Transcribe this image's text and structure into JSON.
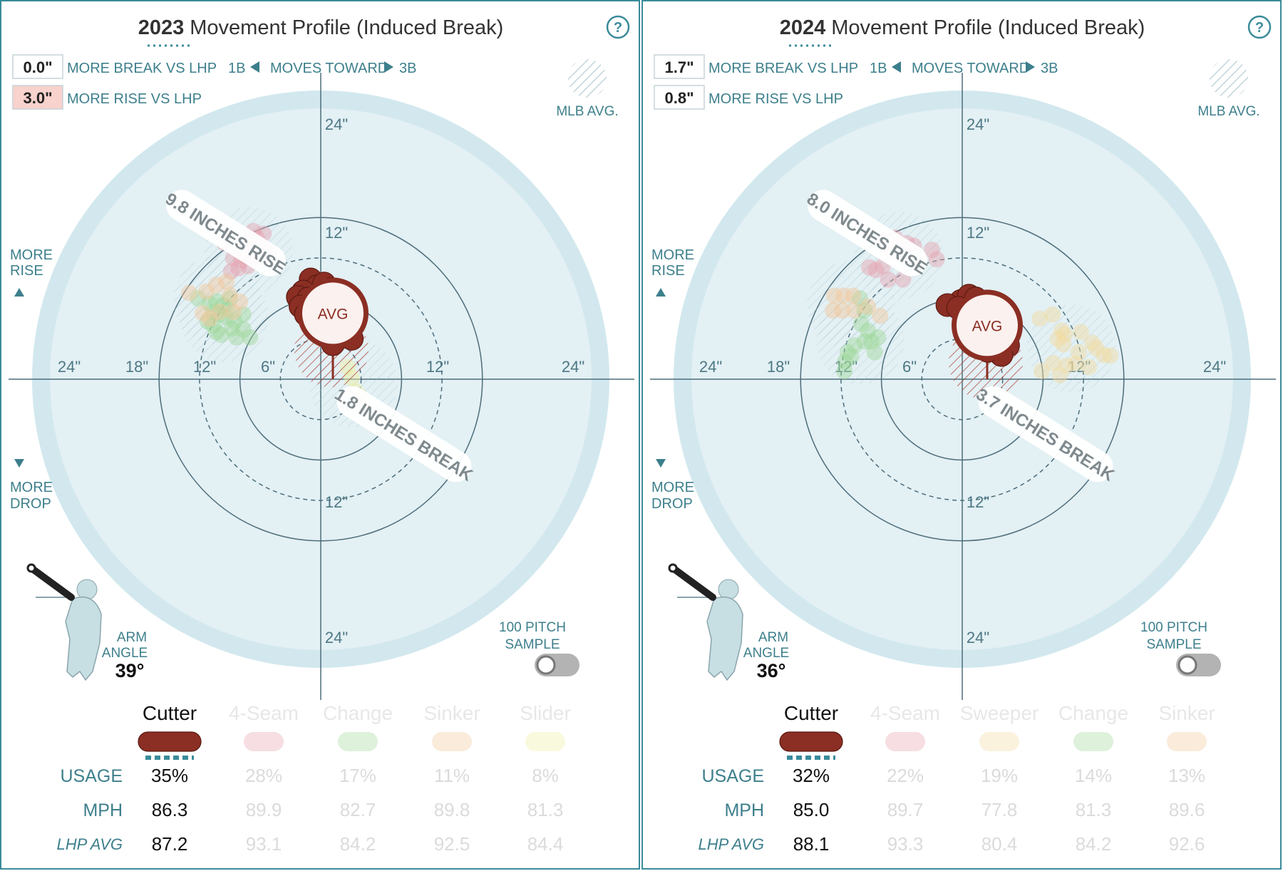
{
  "colors": {
    "accent": "#3a8b9a",
    "cutter": "#8b2e23",
    "fourseam": "#e7a3b0",
    "change": "#9fd89a",
    "sinker": "#f3c89a",
    "sweeper": "#f3dca0",
    "slider": "#eeeea0",
    "field_outer": "#d2e8ee",
    "field_inner": "#e3f0f4",
    "lhp_rise_box": "#f8d2cc",
    "text_teal": "#3d7f8c"
  },
  "ui": {
    "help_icon": "?",
    "mlb_avg": "MLB AVG.",
    "more_break_label": "MORE BREAK VS LHP",
    "more_rise_label": "MORE RISE VS LHP",
    "moves_1b": "1B",
    "moves_toward": "MOVES TOWARD",
    "moves_3b": "3B",
    "more_rise": [
      "MORE",
      "RISE"
    ],
    "more_drop": [
      "MORE",
      "DROP"
    ],
    "arm_angle_label": [
      "ARM",
      "ANGLE"
    ],
    "sample_label": [
      "100 PITCH",
      "SAMPLE"
    ],
    "avg_label": "AVG",
    "row_usage": "USAGE",
    "row_mph": "MPH",
    "row_lhp": "LHP AVG",
    "ring_labels": {
      "left_24": "24\"",
      "left_18": "18\"",
      "left_12": "12\"",
      "left_6": "6\"",
      "right_12": "12\"",
      "right_24": "24\"",
      "top_24": "24\"",
      "top_12": "12\"",
      "bottom_12": "12\"",
      "bottom_24": "24\""
    }
  },
  "chart_data": [
    {
      "type": "scatter",
      "title_year": "2023",
      "title_rest": "Movement Profile (Induced Break)",
      "more_break_vs_lhp": "0.0\"",
      "more_rise_vs_lhp": "3.0\"",
      "rise_banner": "9.8 INCHES RISE",
      "break_banner": "1.8 INCHES BREAK",
      "arm_angle": "39°",
      "selected_pitch": "Cutter",
      "pitches": [
        {
          "name": "Cutter",
          "usage": "35%",
          "mph": "86.3",
          "lhp_avg": "87.2",
          "color": "#8b2e23",
          "active": true
        },
        {
          "name": "4-Seam",
          "usage": "28%",
          "mph": "89.9",
          "lhp_avg": "93.1",
          "color": "#e7a3b0",
          "active": false
        },
        {
          "name": "Change",
          "usage": "17%",
          "mph": "82.7",
          "lhp_avg": "84.2",
          "color": "#9fd89a",
          "active": false
        },
        {
          "name": "Sinker",
          "usage": "11%",
          "mph": "89.8",
          "lhp_avg": "92.5",
          "color": "#f3c89a",
          "active": false
        },
        {
          "name": "Slider",
          "usage": "8%",
          "mph": "81.3",
          "lhp_avg": "84.4",
          "color": "#eeeea0",
          "active": false
        }
      ],
      "avg_point": {
        "x": 1.8,
        "y": 9.8
      },
      "series": [
        {
          "name": "Cutter",
          "points": [
            [
              -1.5,
              14.8
            ],
            [
              -0.5,
              13.8
            ],
            [
              0.5,
              14.2
            ],
            [
              1.5,
              13.4
            ],
            [
              -2.6,
              13.0
            ],
            [
              -3.4,
              12.2
            ],
            [
              -1.8,
              12.0
            ],
            [
              -0.2,
              12.4
            ],
            [
              1.2,
              12.6
            ],
            [
              -3.0,
              10.8
            ],
            [
              -2.2,
              9.6
            ],
            [
              -0.6,
              10.6
            ],
            [
              2.8,
              10.8
            ],
            [
              4.6,
              10.0
            ],
            [
              5.0,
              9.0
            ],
            [
              4.0,
              8.4
            ],
            [
              -1.2,
              8.0
            ],
            [
              0.4,
              8.8
            ],
            [
              2.8,
              7.6
            ],
            [
              3.8,
              6.8
            ],
            [
              4.6,
              6.0
            ],
            [
              1.8,
              5.2
            ]
          ]
        },
        {
          "name": "4-Seam",
          "points": [
            [
              -11.0,
              21.2
            ],
            [
              -10.0,
              22.0
            ],
            [
              -9.5,
              21.0
            ],
            [
              -8.5,
              21.6
            ],
            [
              -11.5,
              20.0
            ],
            [
              -9.8,
              19.5
            ],
            [
              -8.8,
              19.8
            ],
            [
              -7.8,
              18.8
            ],
            [
              -14.3,
              20.2
            ],
            [
              -11.0,
              18.2
            ],
            [
              -9.8,
              18.0
            ],
            [
              -8.6,
              17.6
            ],
            [
              -13.0,
              18.0
            ],
            [
              -11.8,
              17.6
            ],
            [
              -10.8,
              16.8
            ],
            [
              -12.2,
              16.5
            ],
            [
              -13.3,
              16.0
            ]
          ]
        },
        {
          "name": "Change",
          "points": [
            [
              -18.2,
              12.0
            ],
            [
              -16.5,
              11.2
            ],
            [
              -15.5,
              11.6
            ],
            [
              -14.5,
              11.0
            ],
            [
              -13.5,
              12.0
            ],
            [
              -16.0,
              10.0
            ],
            [
              -15.0,
              9.6
            ],
            [
              -14.0,
              9.2
            ],
            [
              -12.8,
              8.6
            ],
            [
              -16.8,
              8.6
            ],
            [
              -16.0,
              8.0
            ],
            [
              -15.5,
              7.0
            ],
            [
              -14.8,
              6.6
            ],
            [
              -13.2,
              7.5
            ],
            [
              -11.5,
              7.4
            ],
            [
              -12.5,
              6.2
            ],
            [
              -10.5,
              6.2
            ],
            [
              -11.5,
              9.6
            ],
            [
              -13.8,
              10.4
            ]
          ]
        },
        {
          "name": "Sinker",
          "points": [
            [
              -15.5,
              14.0
            ],
            [
              -14.0,
              14.5
            ],
            [
              -13.5,
              12.5
            ],
            [
              -12.0,
              11.5
            ],
            [
              -13.0,
              10.0
            ],
            [
              -15.0,
              10.0
            ],
            [
              -16.5,
              9.0
            ],
            [
              -17.5,
              9.8
            ],
            [
              -19.5,
              12.8
            ],
            [
              -17.0,
              13.0
            ]
          ]
        },
        {
          "name": "Slider",
          "points": [
            [
              4.0,
              1.8
            ],
            [
              4.6,
              0.2
            ],
            [
              5.2,
              -1.8
            ],
            [
              5.8,
              -2.6
            ]
          ]
        }
      ]
    },
    {
      "type": "scatter",
      "title_year": "2024",
      "title_rest": "Movement Profile (Induced Break)",
      "more_break_vs_lhp": "1.7\"",
      "more_rise_vs_lhp": "0.8\"",
      "rise_banner": "8.0 INCHES RISE",
      "break_banner": "3.7 INCHES BREAK",
      "arm_angle": "36°",
      "selected_pitch": "Cutter",
      "pitches": [
        {
          "name": "Cutter",
          "usage": "32%",
          "mph": "85.0",
          "lhp_avg": "88.1",
          "color": "#8b2e23",
          "active": true
        },
        {
          "name": "4-Seam",
          "usage": "22%",
          "mph": "89.7",
          "lhp_avg": "93.3",
          "color": "#e7a3b0",
          "active": false
        },
        {
          "name": "Sweeper",
          "usage": "19%",
          "mph": "77.8",
          "lhp_avg": "80.4",
          "color": "#f3dca0",
          "active": false
        },
        {
          "name": "Change",
          "usage": "14%",
          "mph": "81.3",
          "lhp_avg": "84.2",
          "color": "#9fd89a",
          "active": false
        },
        {
          "name": "Sinker",
          "usage": "13%",
          "mph": "89.6",
          "lhp_avg": "92.6",
          "color": "#f3c89a",
          "active": false
        }
      ],
      "avg_point": {
        "x": 3.7,
        "y": 8.0
      },
      "series": [
        {
          "name": "Cutter",
          "points": [
            [
              -0.2,
              11.6
            ],
            [
              1.0,
              12.4
            ],
            [
              2.0,
              12.0
            ],
            [
              3.0,
              11.4
            ],
            [
              4.0,
              11.4
            ],
            [
              -2.2,
              11.0
            ],
            [
              -0.6,
              10.6
            ],
            [
              1.4,
              10.2
            ],
            [
              4.2,
              10.6
            ],
            [
              5.0,
              9.8
            ],
            [
              6.6,
              8.2
            ],
            [
              5.8,
              6.4
            ],
            [
              4.4,
              5.8
            ],
            [
              6.8,
              5.0
            ],
            [
              5.8,
              3.6
            ],
            [
              3.8,
              4.2
            ]
          ]
        },
        {
          "name": "4-Seam",
          "points": [
            [
              -11.8,
              20.6
            ],
            [
              -11.2,
              19.6
            ],
            [
              -10.0,
              21.0
            ],
            [
              -9.4,
              20.2
            ],
            [
              -8.2,
              20.2
            ],
            [
              -7.2,
              19.8
            ],
            [
              -10.2,
              18.8
            ],
            [
              -8.8,
              18.6
            ],
            [
              -7.0,
              18.2
            ],
            [
              -4.5,
              19.2
            ],
            [
              -3.8,
              17.8
            ],
            [
              -11.8,
              16.8
            ],
            [
              -13.8,
              16.6
            ],
            [
              -12.8,
              16.2
            ],
            [
              -11.0,
              14.8
            ],
            [
              -8.8,
              14.8
            ]
          ]
        },
        {
          "name": "Sweeper",
          "points": [
            [
              11.5,
              9.0
            ],
            [
              13.4,
              9.6
            ],
            [
              14.8,
              7.2
            ],
            [
              15.2,
              6.6
            ],
            [
              14.2,
              6.0
            ],
            [
              15.0,
              5.2
            ],
            [
              17.6,
              7.0
            ],
            [
              19.3,
              5.4
            ],
            [
              19.9,
              4.6
            ],
            [
              21.0,
              3.6
            ],
            [
              22.0,
              3.5
            ],
            [
              17.3,
              4.0
            ],
            [
              13.5,
              2.4
            ],
            [
              15.5,
              2.0
            ],
            [
              16.8,
              2.3
            ],
            [
              18.8,
              1.8
            ],
            [
              14.5,
              0.6
            ],
            [
              11.8,
              1.2
            ]
          ]
        },
        {
          "name": "Change",
          "points": [
            [
              -15.2,
              12.0
            ],
            [
              -14.5,
              10.2
            ],
            [
              -15.0,
              8.2
            ],
            [
              -14.0,
              7.2
            ],
            [
              -12.5,
              6.2
            ],
            [
              -13.5,
              5.6
            ],
            [
              -14.5,
              5.6
            ],
            [
              -16.0,
              5.0
            ],
            [
              -17.0,
              4.0
            ],
            [
              -13.0,
              4.0
            ],
            [
              -16.5,
              3.4
            ],
            [
              -17.4,
              2.6
            ],
            [
              -17.5,
              1.2
            ]
          ]
        },
        {
          "name": "Sinker",
          "points": [
            [
              -19.0,
              12.4
            ],
            [
              -17.6,
              12.4
            ],
            [
              -16.2,
              12.4
            ],
            [
              -19.2,
              10.2
            ],
            [
              -17.8,
              10.2
            ],
            [
              -16.0,
              10.2
            ],
            [
              -14.0,
              10.8
            ],
            [
              -12.2,
              9.4
            ]
          ]
        }
      ]
    }
  ]
}
